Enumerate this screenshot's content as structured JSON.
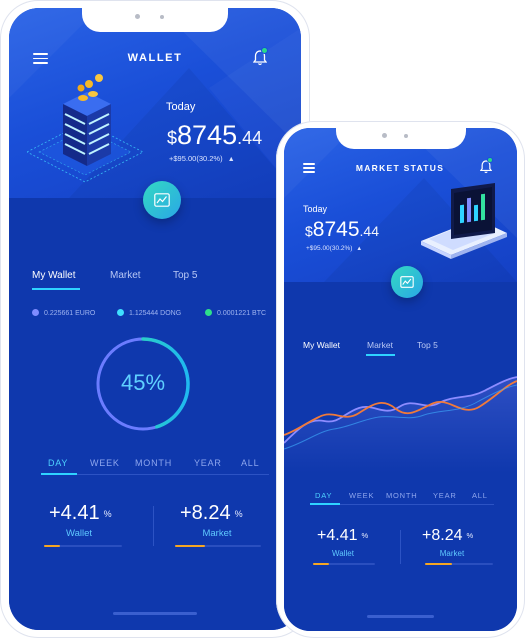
{
  "wallet_phone": {
    "title": "WALLET",
    "today_label": "Today",
    "amount_currency": "$",
    "amount_main": "8745",
    "amount_cents": ".44",
    "change_text": "+$95.00(30.2%)",
    "change_icon": "chevron-up-icon",
    "tabs": [
      {
        "label": "My Wallet",
        "active": true
      },
      {
        "label": "Market",
        "active": false
      },
      {
        "label": "Top 5",
        "active": false
      }
    ],
    "coins": [
      {
        "label": "0.225661 EURO",
        "color": "#7f8cff"
      },
      {
        "label": "1.125444 DONG",
        "color": "#3fe0ff"
      },
      {
        "label": "0.0001221 BTC",
        "color": "#2ee08a"
      }
    ],
    "ring_percent": 45,
    "ring_label": "45%",
    "periods": [
      {
        "label": "DAY",
        "active": true
      },
      {
        "label": "WEEK",
        "active": false
      },
      {
        "label": "MONTH",
        "active": false
      },
      {
        "label": "YEAR",
        "active": false
      },
      {
        "label": "ALL",
        "active": false
      }
    ],
    "stats": [
      {
        "value": "+4.41",
        "unit": "%",
        "label": "Wallet",
        "progress": 0.2
      },
      {
        "value": "+8.24",
        "unit": "%",
        "label": "Market",
        "progress": 0.35
      }
    ]
  },
  "market_phone": {
    "title": "MARKET STATUS",
    "today_label": "Today",
    "amount_currency": "$",
    "amount_main": "8745",
    "amount_cents": ".44",
    "change_text": "+$95.00(30.2%)",
    "change_icon": "chevron-up-icon",
    "tabs": [
      {
        "label": "My Wallet",
        "active": true
      },
      {
        "label": "Market",
        "active": false
      },
      {
        "label": "Top 5",
        "active": false
      }
    ],
    "periods": [
      {
        "label": "DAY",
        "active": true
      },
      {
        "label": "WEEK",
        "active": false
      },
      {
        "label": "MONTH",
        "active": false
      },
      {
        "label": "YEAR",
        "active": false
      },
      {
        "label": "ALL",
        "active": false
      }
    ],
    "stats": [
      {
        "value": "+4.41",
        "unit": "%",
        "label": "Wallet",
        "progress": 0.25
      },
      {
        "value": "+8.24",
        "unit": "%",
        "label": "Market",
        "progress": 0.4
      }
    ]
  },
  "colors": {
    "accent_cyan": "#2fd3ff",
    "accent_orange": "#f5a623",
    "header_blue": "#1a4fd8",
    "body_blue": "#0f38ad",
    "ring_green": "#33d9a0",
    "ring_blue": "#6b7cff"
  }
}
